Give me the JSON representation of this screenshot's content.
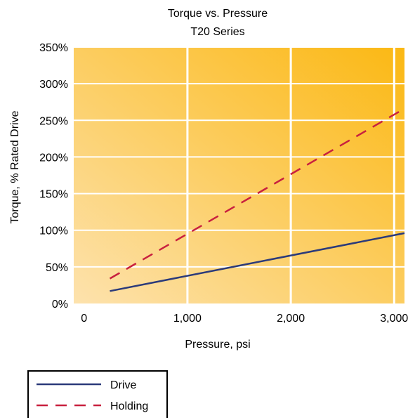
{
  "chart_data": {
    "type": "line",
    "title": "Torque vs. Pressure",
    "subtitle": "T20 Series",
    "xlabel": "Pressure, psi",
    "ylabel": "Torque, % Rated Drive",
    "xlim": [
      -100,
      3100
    ],
    "ylim": [
      0,
      350
    ],
    "x_ticks": [
      0,
      1000,
      2000,
      3000
    ],
    "x_tick_labels": [
      "0",
      "1,000",
      "2,000",
      "3,000"
    ],
    "y_ticks": [
      0,
      50,
      100,
      150,
      200,
      250,
      300,
      350
    ],
    "y_tick_labels": [
      "0%",
      "50%",
      "100%",
      "150%",
      "200%",
      "250%",
      "300%",
      "350%"
    ],
    "grid": true,
    "legend_position": "bottom-left",
    "series": [
      {
        "name": "Drive",
        "style": "solid",
        "color": "#2b3a7a",
        "x": [
          250,
          3100
        ],
        "y": [
          17,
          96
        ]
      },
      {
        "name": "Holding",
        "style": "dashed",
        "color": "#c8203f",
        "x": [
          250,
          3100
        ],
        "y": [
          34,
          266
        ]
      }
    ],
    "colors": {
      "background_light": "#fde2ad",
      "background_dark": "#fbb813",
      "grid": "#ffffff"
    }
  }
}
